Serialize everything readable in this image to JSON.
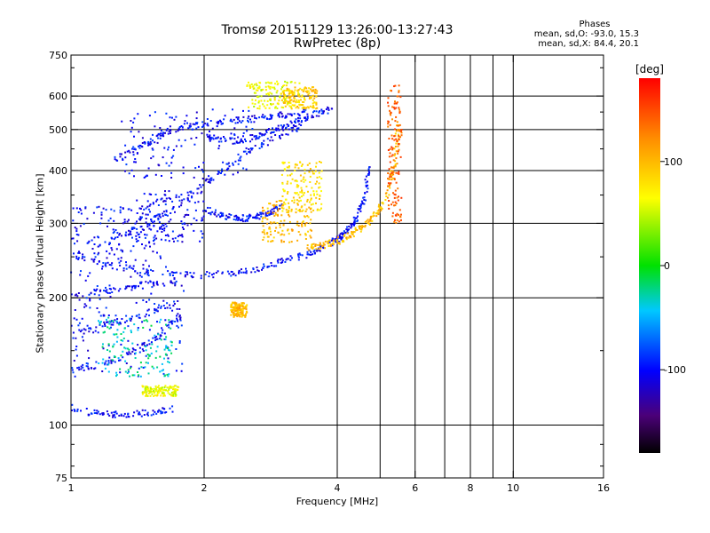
{
  "chart_data": {
    "type": "scatter",
    "title": "Tromsø 20151129 13:26:00-13:27:43",
    "subtitle": "RwPretec (8p)",
    "xlabel": "Frequency [MHz]",
    "ylabel": "Stationary phase Virtual Height [km]",
    "x_scale": "log",
    "y_scale": "log",
    "xlim": [
      1,
      16
    ],
    "ylim": [
      75,
      750
    ],
    "x_tick_labels": [
      "1",
      "2",
      "4",
      "6",
      "8",
      "10",
      "16"
    ],
    "x_ticks": [
      1,
      2,
      4,
      6,
      8,
      10,
      16
    ],
    "x_grid": [
      2,
      4,
      5,
      6,
      7,
      8,
      9,
      10
    ],
    "y_tick_labels": [
      "75",
      "100",
      "200",
      "300",
      "400",
      "500",
      "600",
      "750"
    ],
    "y_ticks": [
      75,
      100,
      200,
      300,
      400,
      500,
      600,
      750
    ],
    "y_grid": [
      100,
      200,
      300,
      400,
      500,
      600
    ],
    "grid": true,
    "colorbar": {
      "label": "[deg]",
      "range": [
        -180,
        180
      ],
      "tick_labels": [
        "100",
        "0",
        "-100"
      ],
      "ticks": [
        100,
        0,
        -100
      ]
    },
    "phases_legend": {
      "title": "Phases",
      "line_o": "mean, sd,O: -93.0, 15.3",
      "line_x": "mean, sd,X: 84.4, 20.1"
    },
    "traces": [
      {
        "x": [
          1.0,
          1.3,
          1.6,
          2.0,
          2.4,
          2.8,
          3.2,
          3.6,
          4.0,
          4.2,
          4.4,
          4.6,
          4.75
        ],
        "y": [
          250,
          236,
          228,
          226,
          230,
          238,
          248,
          258,
          275,
          288,
          305,
          340,
          420
        ],
        "phase": -100
      },
      {
        "x": [
          3.4,
          3.7,
          4.0,
          4.3,
          4.6,
          4.9,
          5.2,
          5.4,
          5.5
        ],
        "y": [
          262,
          266,
          272,
          282,
          295,
          315,
          350,
          420,
          520
        ],
        "phase": 100
      },
      {
        "x": [
          1.2,
          1.5,
          1.8,
          2.1,
          2.5,
          2.9,
          3.3
        ],
        "y": [
          270,
          300,
          340,
          390,
          440,
          480,
          510
        ],
        "phase": -100
      },
      {
        "x": [
          1.25,
          1.45,
          1.65,
          1.9,
          2.2,
          2.6,
          3.0,
          3.4
        ],
        "y": [
          420,
          460,
          490,
          510,
          520,
          530,
          540,
          550
        ],
        "phase": -100
      },
      {
        "x": [
          2.0,
          2.3,
          2.6,
          2.9,
          3.2,
          3.5,
          3.9
        ],
        "y": [
          480,
          470,
          480,
          500,
          520,
          540,
          560
        ],
        "phase": -100
      },
      {
        "x": [
          2.0,
          2.2,
          2.4,
          2.6,
          2.8,
          3.0
        ],
        "y": [
          325,
          312,
          308,
          310,
          318,
          332
        ],
        "phase": -100
      },
      {
        "x": [
          1.0,
          1.15,
          1.3,
          1.5,
          1.7
        ],
        "y": [
          110,
          106,
          106,
          107,
          109
        ],
        "phase": -100
      },
      {
        "x": [
          1.0,
          1.2,
          1.4,
          1.6,
          1.8
        ],
        "y": [
          135,
          140,
          150,
          165,
          185
        ],
        "phase": -100
      },
      {
        "x": [
          1.05,
          1.25,
          1.5,
          1.75
        ],
        "y": [
          165,
          175,
          185,
          195
        ],
        "phase": -100
      },
      {
        "x": [
          1.0,
          1.25,
          1.5,
          1.75
        ],
        "y": [
          200,
          210,
          215,
          220
        ],
        "phase": -100
      }
    ],
    "clusters": [
      {
        "x": [
          1.0,
          1.8
        ],
        "y": [
          130,
          240
        ],
        "phase": -100
      },
      {
        "x": [
          1.0,
          1.6
        ],
        "y": [
          240,
          330
        ],
        "phase": -100
      },
      {
        "x": [
          1.15,
          1.7
        ],
        "y": [
          130,
          180
        ],
        "phase": -30
      },
      {
        "x": [
          1.3,
          2.6
        ],
        "y": [
          380,
          560
        ],
        "phase": -100
      },
      {
        "x": [
          1.4,
          2.0
        ],
        "y": [
          270,
          360
        ],
        "phase": -100
      },
      {
        "x": [
          2.5,
          3.3
        ],
        "y": [
          560,
          650
        ],
        "phase": 60
      },
      {
        "x": [
          3.0,
          3.6
        ],
        "y": [
          560,
          630
        ],
        "phase": 90
      },
      {
        "x": [
          3.0,
          3.7
        ],
        "y": [
          320,
          420
        ],
        "phase": 80
      },
      {
        "x": [
          2.7,
          3.5
        ],
        "y": [
          270,
          340
        ],
        "phase": 100
      },
      {
        "x": [
          5.2,
          5.6
        ],
        "y": [
          300,
          640
        ],
        "phase": 140
      },
      {
        "x": [
          1.45,
          1.75
        ],
        "y": [
          117,
          124
        ],
        "phase": 60
      },
      {
        "x": [
          2.3,
          2.5
        ],
        "y": [
          180,
          195
        ],
        "phase": 100
      }
    ]
  }
}
